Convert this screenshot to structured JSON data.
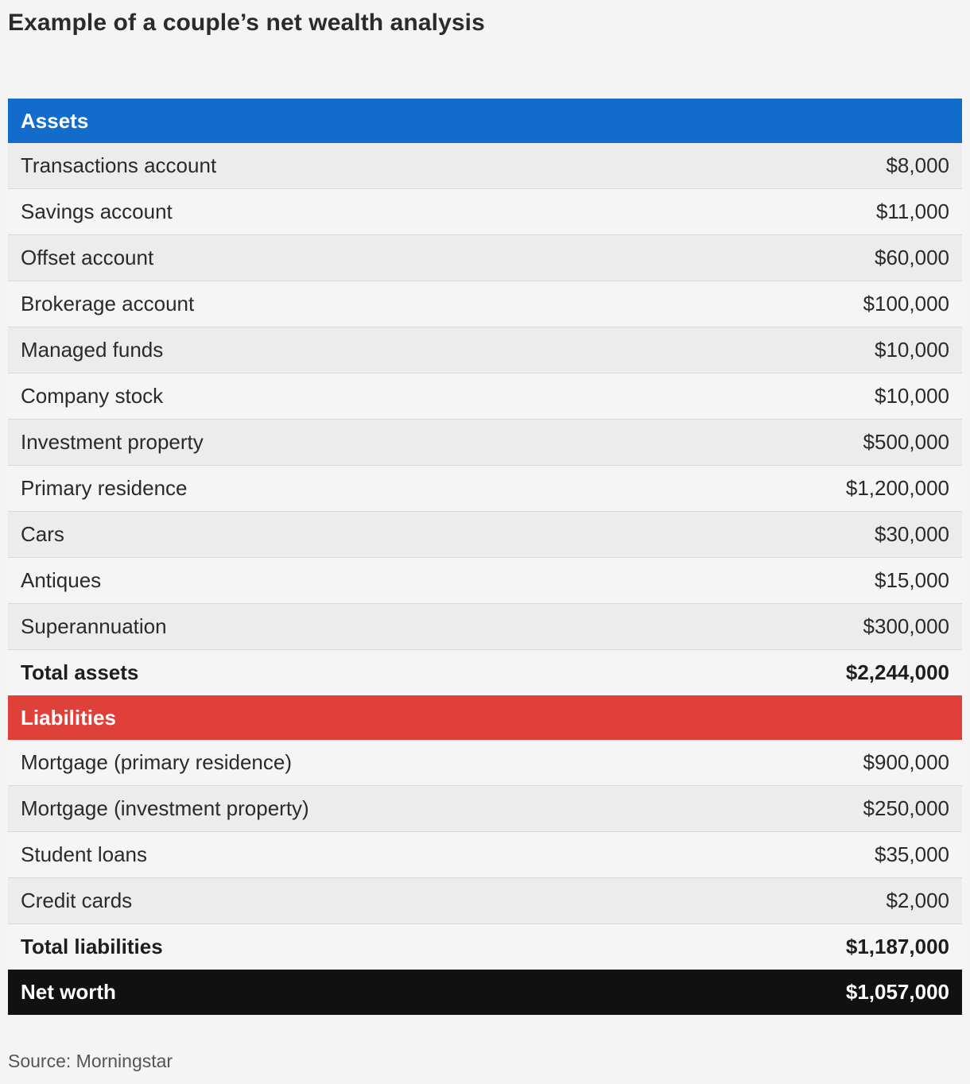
{
  "title": "Example of a couple’s net wealth analysis",
  "source": "Source: Morningstar",
  "chart_data": {
    "type": "table",
    "title": "Example of a couple’s net wealth analysis",
    "sections": [
      {
        "name": "Assets",
        "color": "#116ccc",
        "rows": [
          {
            "label": "Transactions account",
            "value": "$8,000"
          },
          {
            "label": "Savings account",
            "value": "$11,000"
          },
          {
            "label": "Offset account",
            "value": "$60,000"
          },
          {
            "label": "Brokerage account",
            "value": "$100,000"
          },
          {
            "label": "Managed funds",
            "value": "$10,000"
          },
          {
            "label": "Company stock",
            "value": "$10,000"
          },
          {
            "label": "Investment property",
            "value": "$500,000"
          },
          {
            "label": "Primary residence",
            "value": "$1,200,000"
          },
          {
            "label": "Cars",
            "value": "$30,000"
          },
          {
            "label": "Antiques",
            "value": "$15,000"
          },
          {
            "label": "Superannuation",
            "value": "$300,000"
          }
        ],
        "total": {
          "label": "Total assets",
          "value": "$2,244,000"
        }
      },
      {
        "name": "Liabilities",
        "color": "#e0403a",
        "rows": [
          {
            "label": "Mortgage (primary residence)",
            "value": "$900,000"
          },
          {
            "label": "Mortgage (investment property)",
            "value": "$250,000"
          },
          {
            "label": "Student loans",
            "value": "$35,000"
          },
          {
            "label": "Credit cards",
            "value": "$2,000"
          }
        ],
        "total": {
          "label": "Total liabilities",
          "value": "$1,187,000"
        }
      }
    ],
    "net_worth": {
      "label": "Net worth",
      "value": "$1,057,000"
    }
  }
}
